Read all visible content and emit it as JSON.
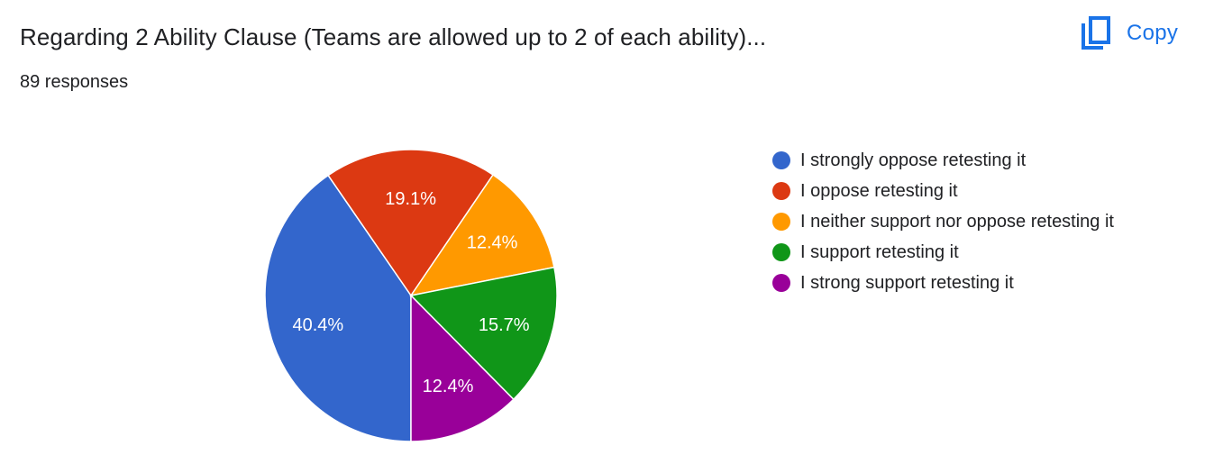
{
  "header": {
    "title": "Regarding 2 Ability Clause (Teams are allowed up to 2 of each ability)...",
    "responses": "89 responses",
    "copy_label": "Copy",
    "copy_icon": "copy-icon",
    "accent_color": "#1a73e8"
  },
  "chart_data": {
    "type": "pie",
    "title": "Regarding 2 Ability Clause (Teams are allowed up to 2 of each ability)...",
    "total_responses": 89,
    "start_angle_deg": 90,
    "direction": "counterclockwise",
    "legend_position": "right",
    "slices": [
      {
        "label": "I strongly oppose retesting it",
        "value": 40.4,
        "value_label": "40.4%",
        "color": "#3366cc"
      },
      {
        "label": "I oppose retesting it",
        "value": 19.1,
        "value_label": "19.1%",
        "color": "#dc3912"
      },
      {
        "label": "I neither support nor oppose retesting it",
        "value": 12.4,
        "value_label": "12.4%",
        "color": "#ff9900"
      },
      {
        "label": "I support retesting it",
        "value": 15.7,
        "value_label": "15.7%",
        "color": "#109618"
      },
      {
        "label": "I strong support retesting it",
        "value": 12.4,
        "value_label": "12.4%",
        "color": "#990099"
      }
    ]
  }
}
